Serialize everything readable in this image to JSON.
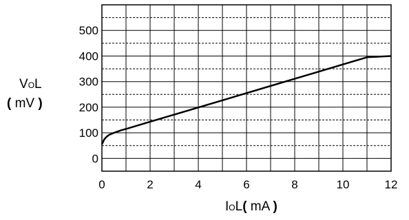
{
  "chart_data": {
    "type": "line",
    "xlabel": {
      "main": "I",
      "sub": "O",
      "rest": "L",
      "open": "(",
      "unit": " mA ",
      "close": ")"
    },
    "ylabel": {
      "main": "V",
      "sub": "O",
      "rest": "L",
      "open": "(",
      "unit": " mV ",
      "close": ")"
    },
    "xlim": [
      0,
      12
    ],
    "ylim": [
      -50,
      600
    ],
    "x_ticks": [
      0,
      2,
      4,
      6,
      8,
      10,
      12
    ],
    "x_tick_labels": [
      "0",
      "2",
      "4",
      "6",
      "8",
      "10",
      "12"
    ],
    "y_ticks": [
      0,
      100,
      200,
      300,
      400,
      500
    ],
    "y_tick_labels": [
      "0",
      "100",
      "200",
      "300",
      "400",
      "500"
    ],
    "grid": {
      "major_solid": true,
      "minor_dashed": true
    },
    "series": [
      {
        "x": [
          0,
          0.05,
          0.1,
          0.2,
          0.3,
          0.5,
          0.8,
          1,
          2,
          3,
          4,
          5,
          6,
          7,
          8,
          9,
          10,
          11,
          12
        ],
        "y": [
          55,
          65,
          75,
          85,
          92,
          100,
          110,
          115,
          143,
          171,
          199,
          227,
          255,
          283,
          311,
          339,
          367,
          395,
          400
        ]
      }
    ]
  }
}
